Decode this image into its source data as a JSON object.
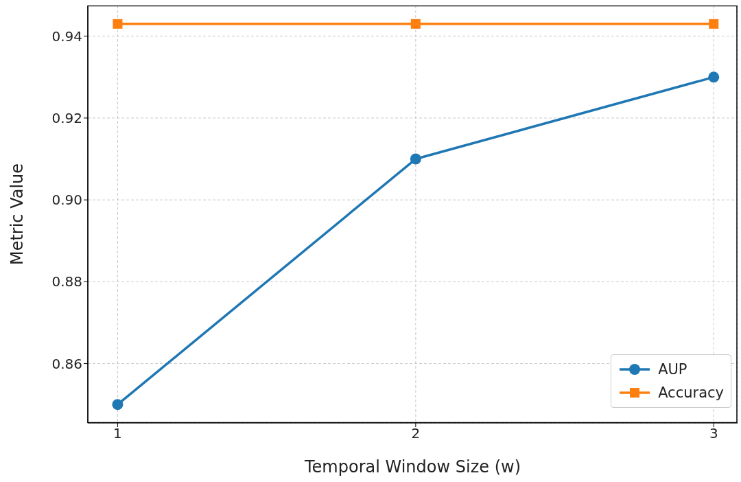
{
  "chart_data": {
    "type": "line",
    "xlabel": "Temporal Window Size (w)",
    "ylabel": "Metric Value",
    "x": [
      1,
      2,
      3
    ],
    "xlim": [
      0.9,
      3.08
    ],
    "xticks": [
      1,
      2,
      3
    ],
    "ylim": [
      0.8455,
      0.9475
    ],
    "yticks": [
      {
        "value": 0.86,
        "label": "0.86"
      },
      {
        "value": 0.88,
        "label": "0.88"
      },
      {
        "value": 0.9,
        "label": "0.90"
      },
      {
        "value": 0.92,
        "label": "0.92"
      },
      {
        "value": 0.94,
        "label": "0.94"
      }
    ],
    "series": [
      {
        "name": "AUP",
        "color": "#1f77b4",
        "values": [
          0.85,
          0.91,
          0.93
        ],
        "marker": "circle"
      },
      {
        "name": "Accuracy",
        "color": "#ff7f0e",
        "values": [
          0.943,
          0.943,
          0.943
        ],
        "marker": "square"
      }
    ],
    "grid": true,
    "legend": "bottom right",
    "line_style": "solid"
  }
}
